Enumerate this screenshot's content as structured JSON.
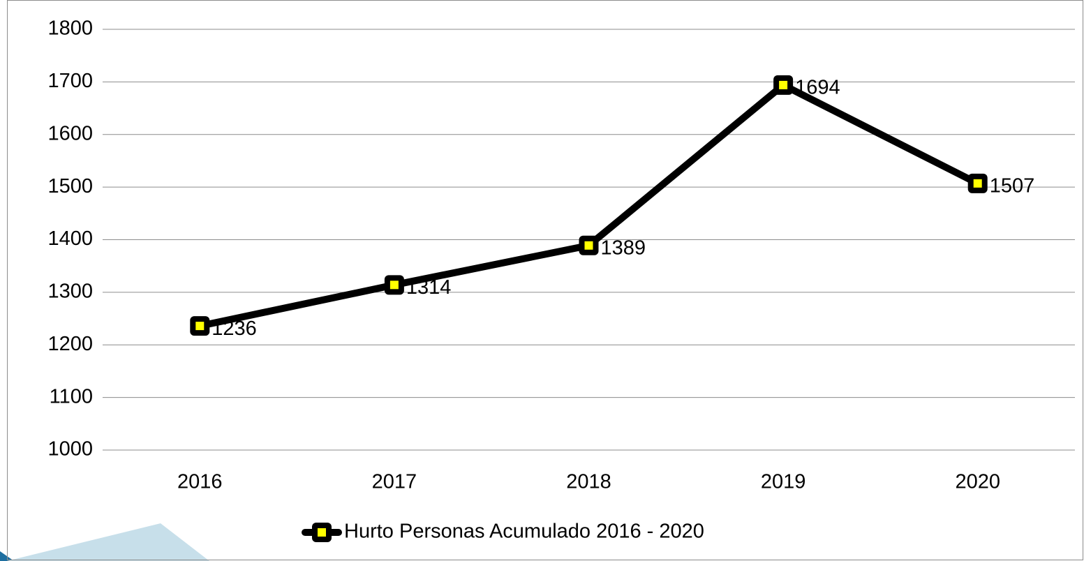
{
  "chart_data": {
    "type": "line",
    "categories": [
      "2016",
      "2017",
      "2018",
      "2019",
      "2020"
    ],
    "series": [
      {
        "name": "Hurto Personas Acumulado 2016 - 2020",
        "color": "#000000",
        "marker_fill": "#ffff00",
        "values": [
          1236,
          1314,
          1389,
          1694,
          1507
        ]
      }
    ],
    "ylim": [
      1000,
      1800
    ],
    "yticks": [
      1000,
      1100,
      1200,
      1300,
      1400,
      1500,
      1600,
      1700,
      1800
    ],
    "grid": true,
    "data_labels": true,
    "legend": "bottom"
  }
}
